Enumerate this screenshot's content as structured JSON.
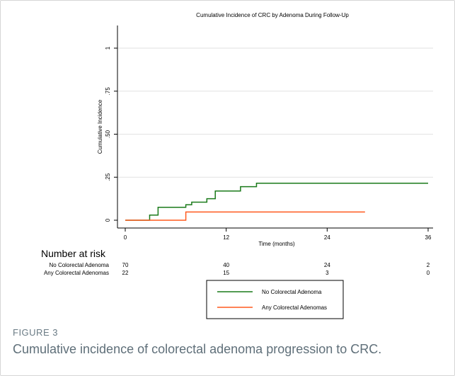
{
  "chart_data": {
    "type": "line",
    "title": "Cumulative Incidence of CRC by Adenoma During Follow-Up",
    "xlabel": "Time (months)",
    "ylabel": "Cumulative Incidence",
    "xlim": [
      0,
      36
    ],
    "ylim": [
      0,
      1
    ],
    "xticks": [
      0,
      12,
      24,
      36
    ],
    "yticks": [
      0,
      0.25,
      0.5,
      0.75,
      1
    ],
    "ytick_labels": [
      "0",
      ".25",
      ".50",
      ".75",
      "1"
    ],
    "grid": "horizontal",
    "legend_placement": "bottom",
    "series": [
      {
        "name": "No Colorectal Adenoma",
        "color": "#1a7a1a",
        "step": true,
        "x": [
          0,
          2.9,
          3.9,
          7.2,
          7.9,
          9.7,
          10.7,
          13.7,
          15.6,
          36
        ],
        "y": [
          0,
          0.03,
          0.075,
          0.09,
          0.105,
          0.125,
          0.17,
          0.195,
          0.215,
          0.215
        ]
      },
      {
        "name": "Any Colorectal Adenomas",
        "color": "#ff5a1f",
        "step": true,
        "x": [
          0,
          7.2,
          28.5
        ],
        "y": [
          0,
          0.048,
          0.048
        ]
      }
    ],
    "risk_table": {
      "title": "Number at risk",
      "rows": [
        {
          "label": "No Colorectal Adenoma",
          "values": [
            "70",
            "40",
            "24",
            "2"
          ]
        },
        {
          "label": "Any Colorectal Adenomas",
          "values": [
            "22",
            "15",
            "3",
            "0"
          ]
        }
      ]
    }
  },
  "caption": {
    "label": "FIGURE 3",
    "text": "Cumulative incidence of colorectal adenoma progression to CRC."
  }
}
